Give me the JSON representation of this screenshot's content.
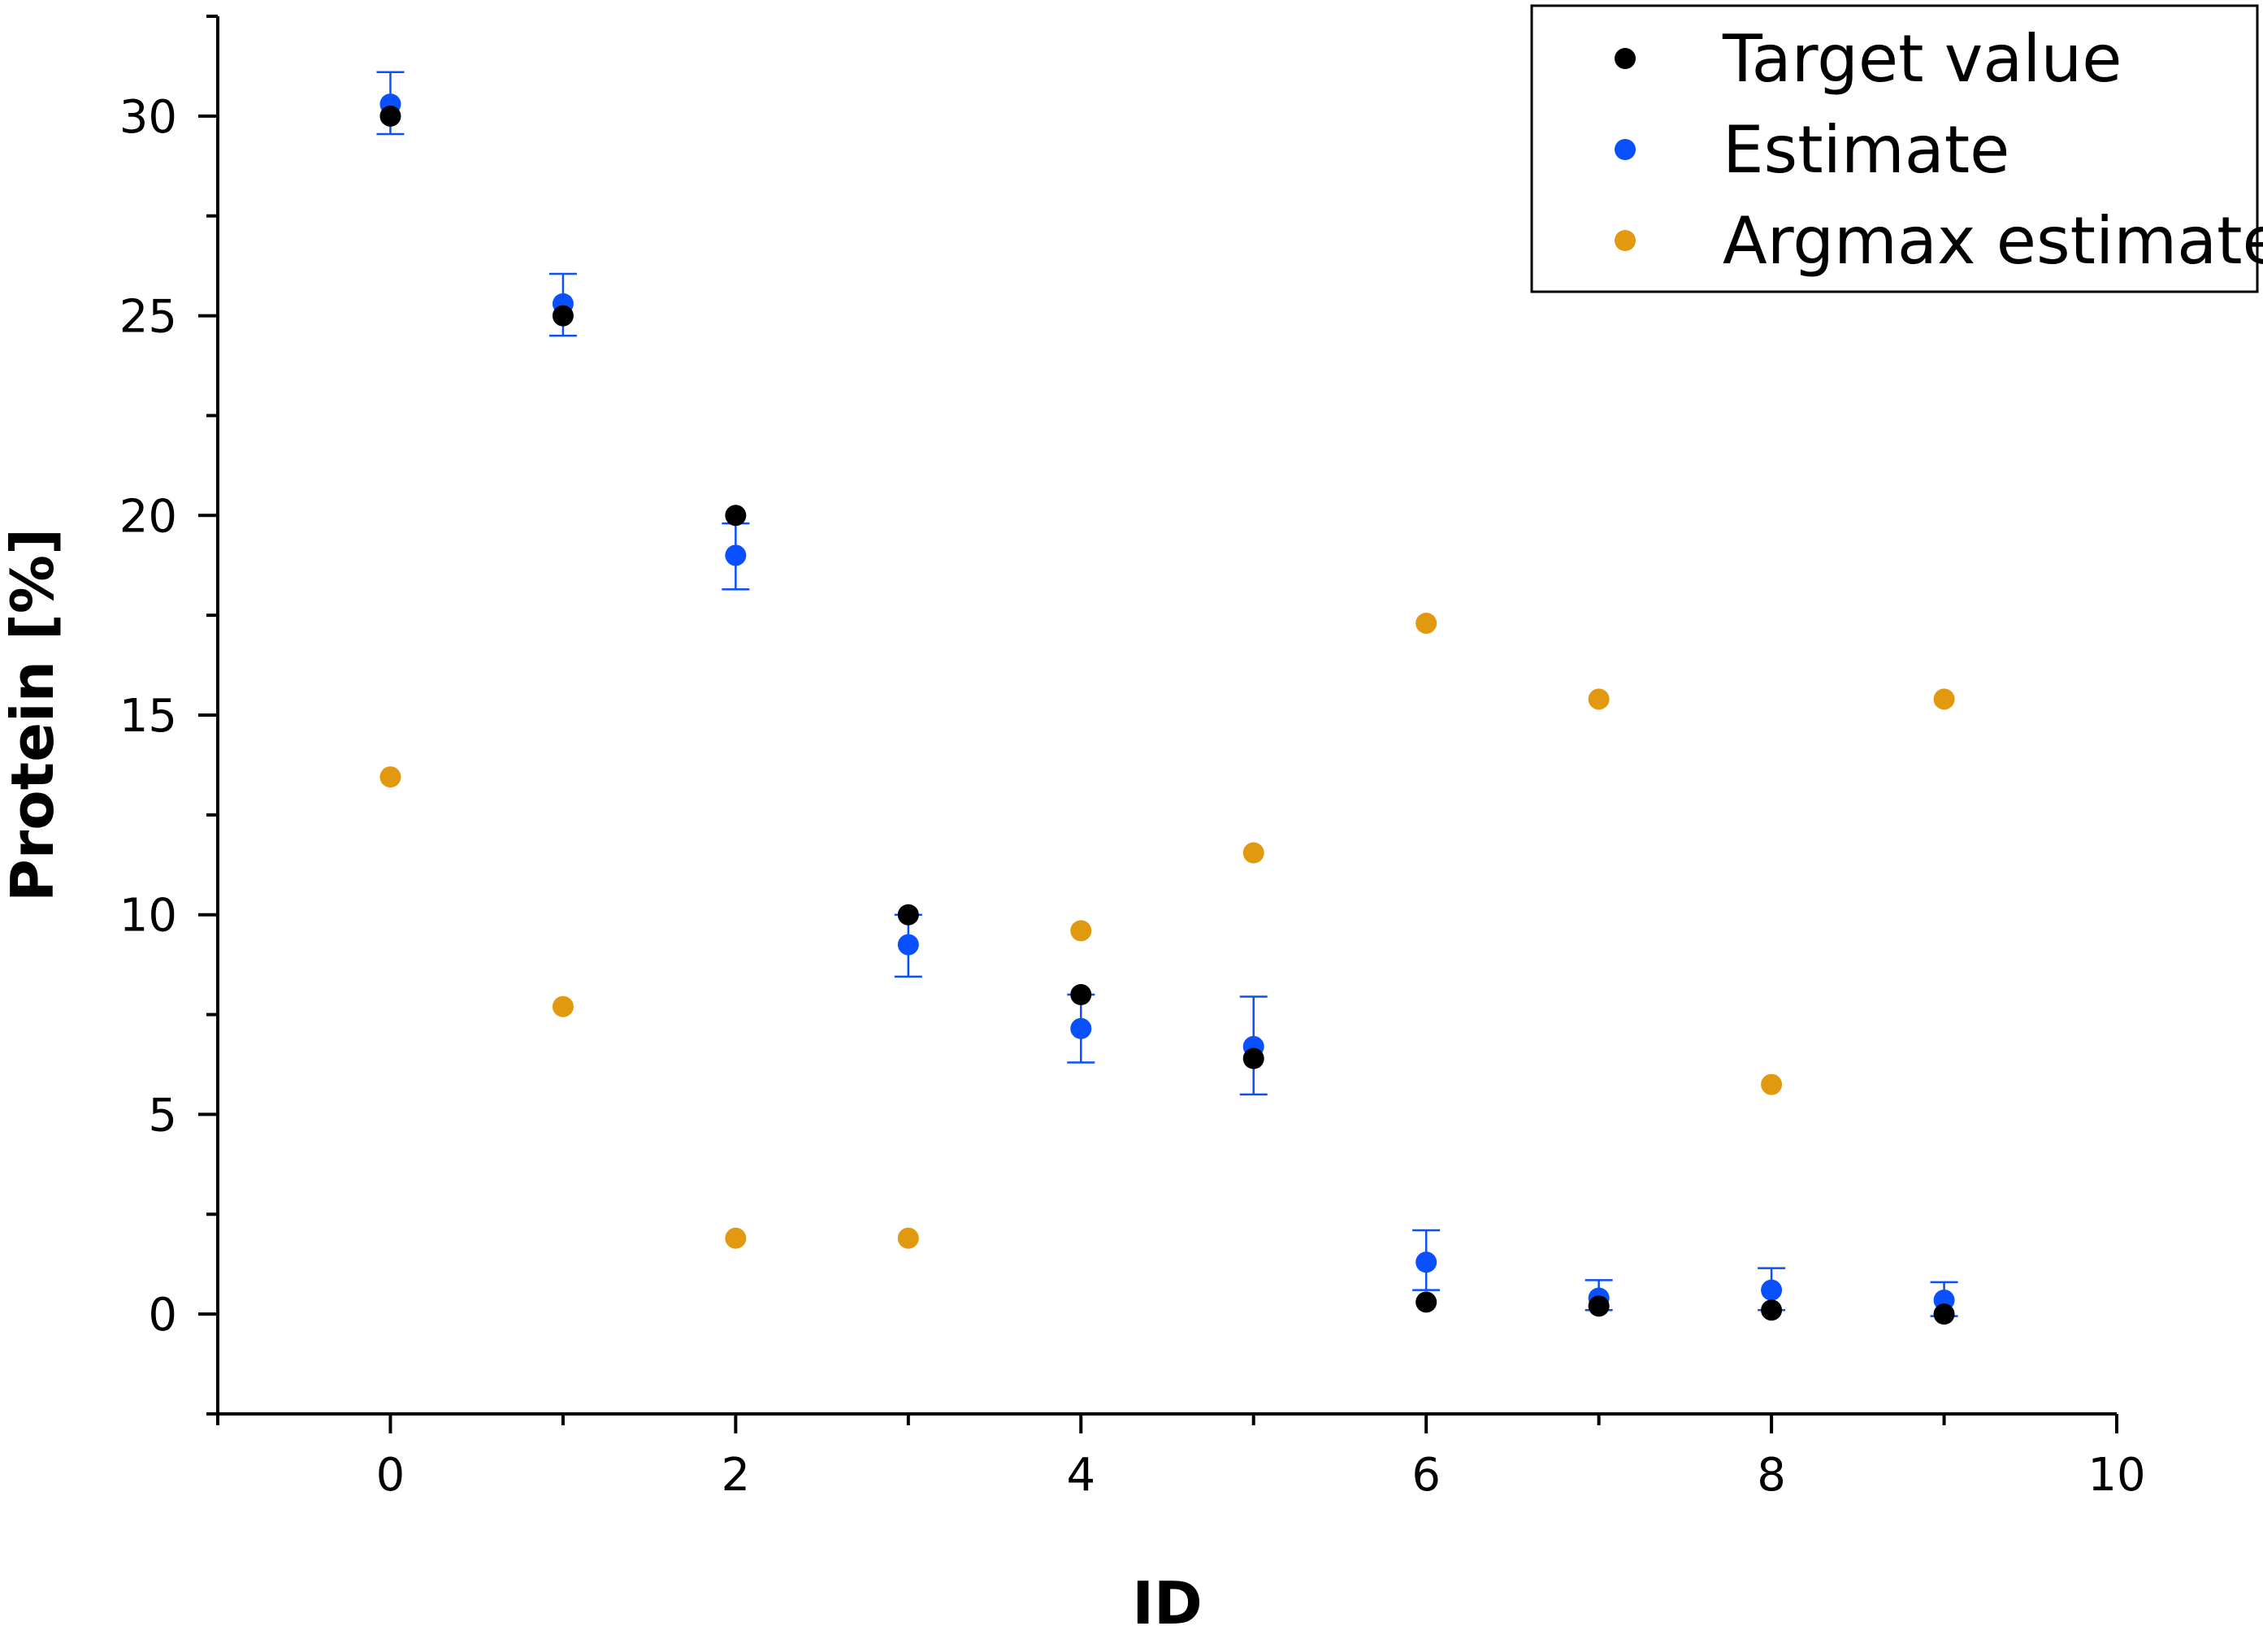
{
  "chart_data": {
    "type": "scatter",
    "title": "",
    "xlabel": "ID",
    "ylabel": "Protein [%]",
    "xlim": [
      -1,
      10
    ],
    "ylim": [
      -2.5,
      32.5
    ],
    "x_ticks": [
      0,
      2,
      4,
      6,
      8,
      10
    ],
    "x_minor_ticks": [
      -1,
      1,
      3,
      5,
      7,
      9
    ],
    "y_ticks": [
      0,
      5,
      10,
      15,
      20,
      25,
      30
    ],
    "y_minor_ticks": [
      -2.5,
      2.5,
      7.5,
      12.5,
      17.5,
      22.5,
      27.5,
      32.5
    ],
    "grid": false,
    "legend_position": "top-right",
    "colors": {
      "target": "#000000",
      "estimate": "#0a50ff",
      "argmax": "#e19a10"
    },
    "series": [
      {
        "name": "Target value",
        "color_key": "target",
        "x": [
          0,
          1,
          2,
          3,
          4,
          5,
          6,
          7,
          8,
          9
        ],
        "y": [
          30,
          25,
          20,
          10,
          8,
          6.4,
          0.3,
          0.2,
          0.1,
          0
        ]
      },
      {
        "name": "Estimate",
        "color_key": "estimate",
        "x": [
          0,
          1,
          2,
          3,
          4,
          5,
          6,
          7,
          8,
          9
        ],
        "y": [
          30.3,
          25.3,
          19,
          9.25,
          7.15,
          6.7,
          1.3,
          0.4,
          0.6,
          0.35
        ],
        "error_low": [
          29.55,
          24.5,
          18.15,
          8.45,
          6.3,
          5.5,
          0.6,
          0.1,
          0.1,
          -0.05
        ],
        "error_high": [
          31.1,
          26.05,
          19.8,
          10.0,
          8.0,
          7.95,
          2.1,
          0.85,
          1.15,
          0.8
        ]
      },
      {
        "name": "Argmax estimate",
        "color_key": "argmax",
        "x": [
          0,
          1,
          2,
          3,
          4,
          5,
          6,
          7,
          8,
          9
        ],
        "y": [
          13.45,
          7.7,
          1.9,
          1.9,
          9.6,
          11.55,
          17.3,
          15.4,
          5.75,
          15.4
        ]
      }
    ]
  }
}
